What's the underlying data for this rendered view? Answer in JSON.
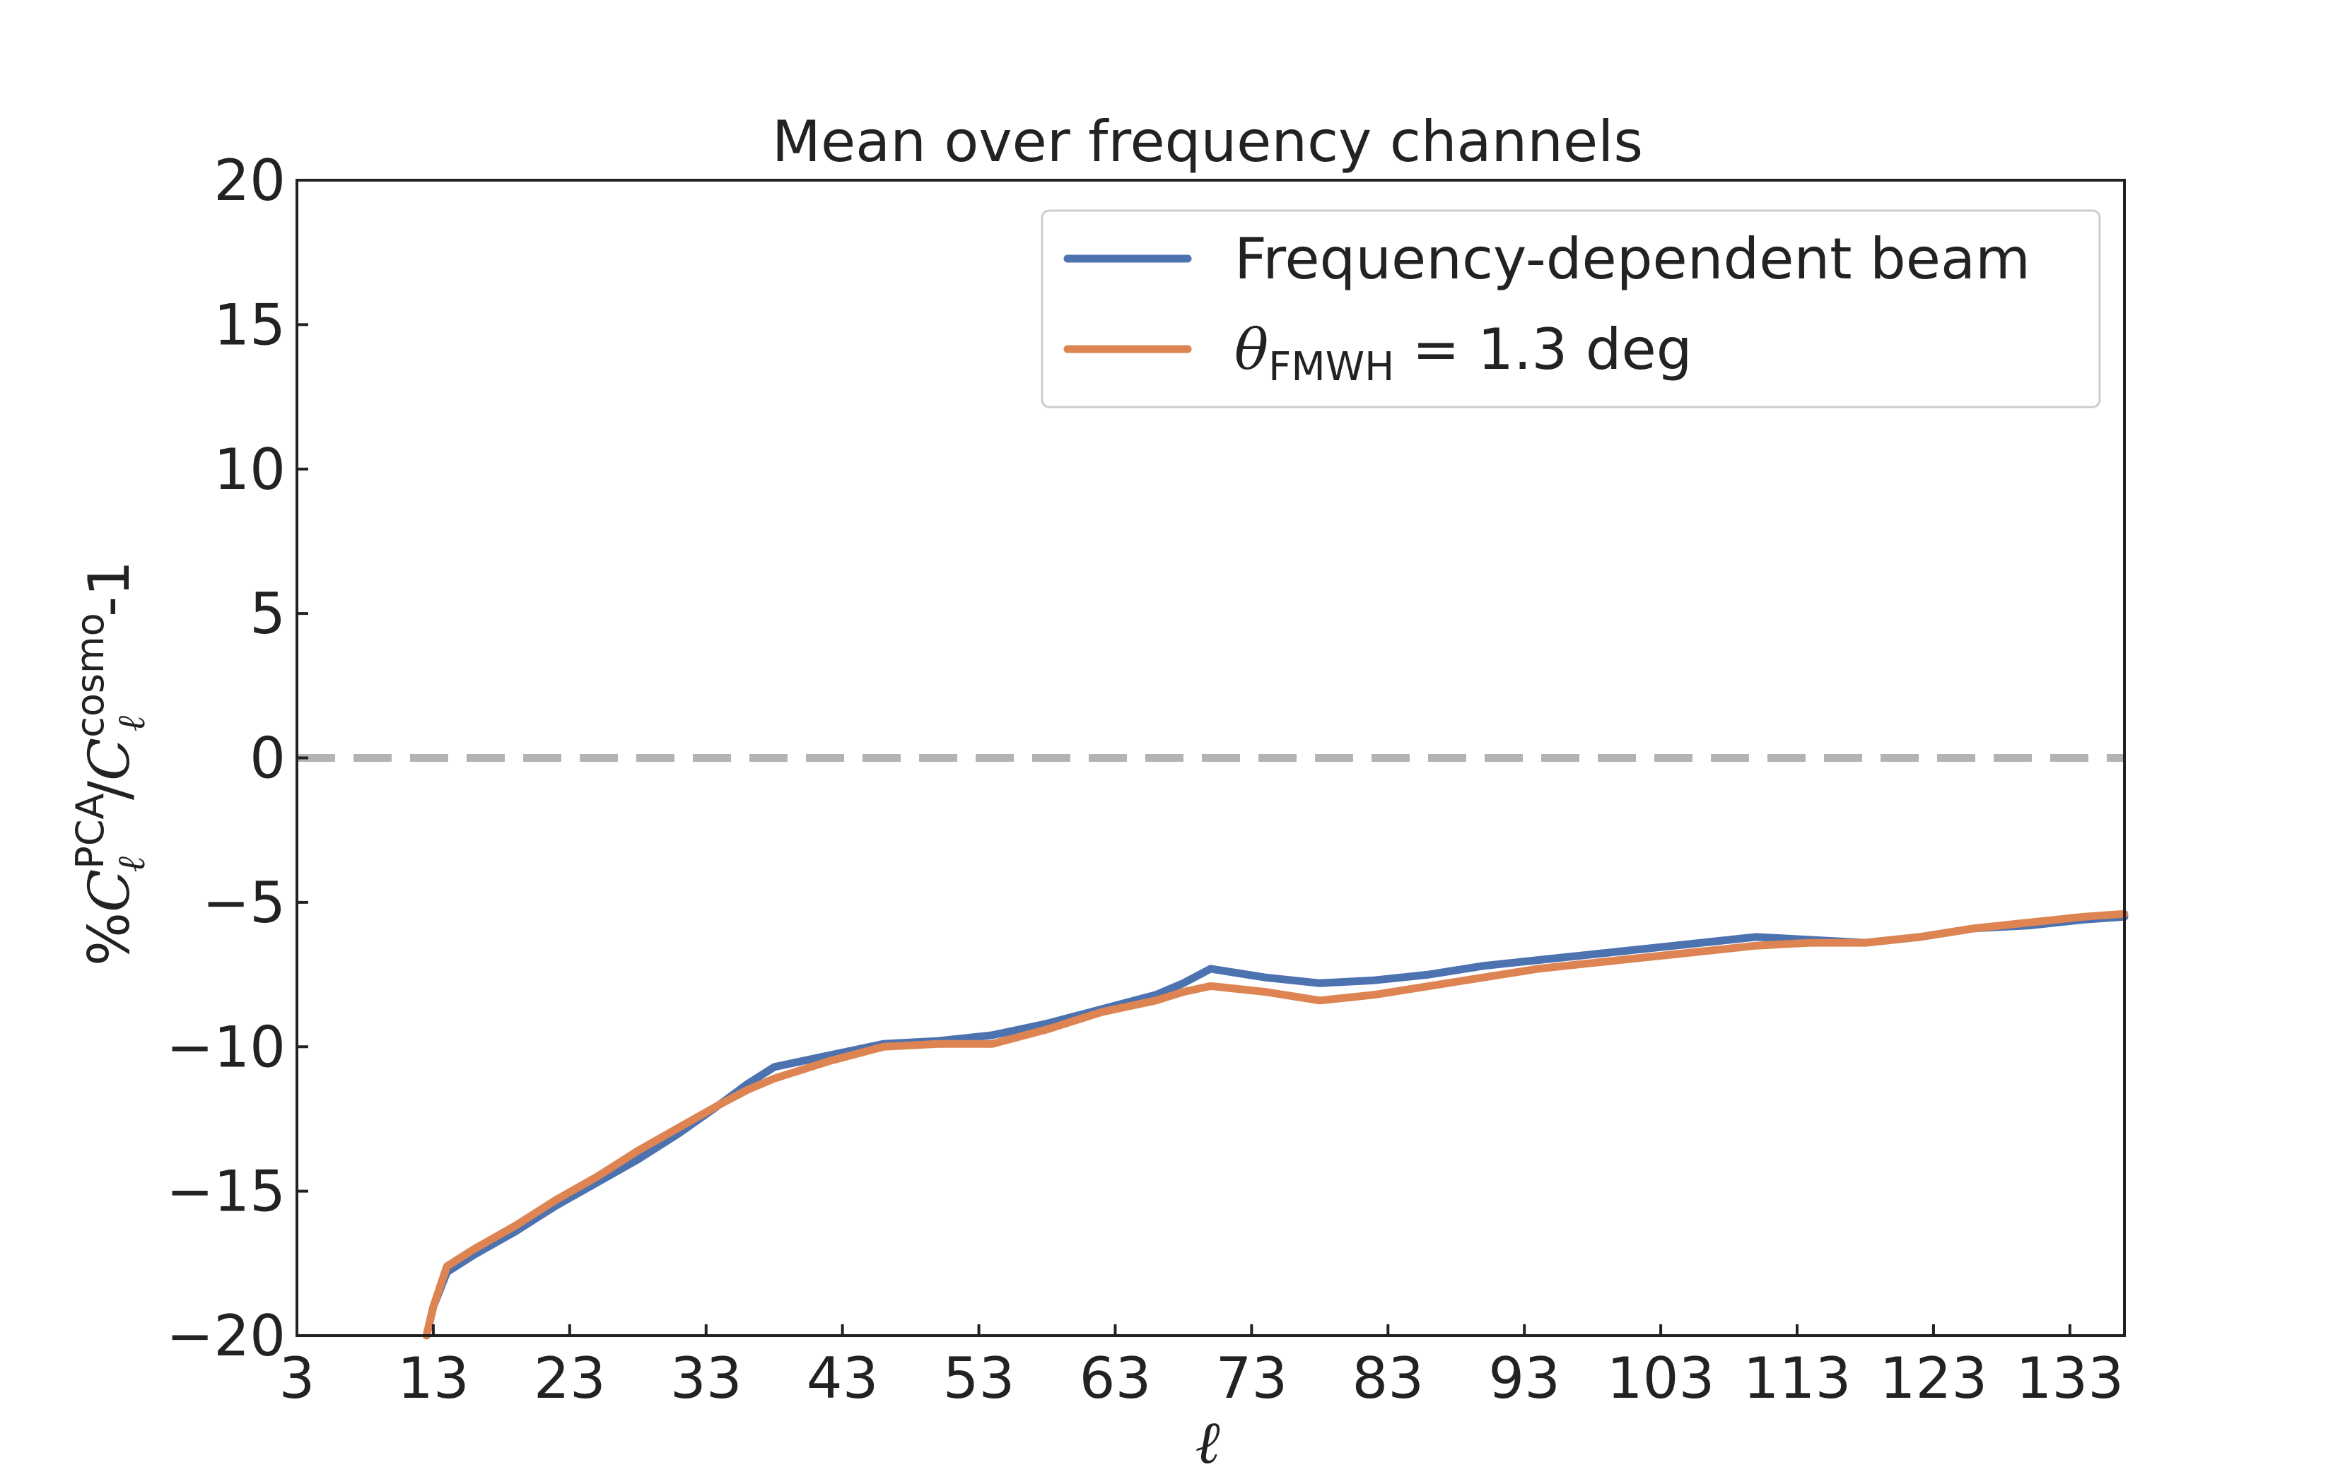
{
  "chart_data": {
    "type": "line",
    "title": "Mean over frequency channels",
    "xlabel": "ℓ",
    "ylabel": {
      "prefix": "%",
      "symbol": "C",
      "sub": "ℓ",
      "sup_num": "PCA",
      "sup_den": "cosmo",
      "suffix": "-1"
    },
    "xlim": [
      3,
      137
    ],
    "ylim": [
      -20,
      20
    ],
    "xticks": [
      3,
      13,
      23,
      33,
      43,
      53,
      63,
      73,
      83,
      93,
      103,
      113,
      123,
      133
    ],
    "yticks": [
      20,
      15,
      10,
      5,
      0,
      -5,
      -10,
      -15,
      -20
    ],
    "ytick_labels": [
      "20",
      "15",
      "10",
      "5",
      "0",
      "−5",
      "−10",
      "−15",
      "−20"
    ],
    "reference_line": {
      "y": 0,
      "style": "dashed",
      "color": "#b3b3b3"
    },
    "legend_position": "top-right",
    "series": [
      {
        "name": "Frequency-dependent beam",
        "color": "#4c72b0",
        "x": [
          12.5,
          13,
          14,
          16,
          19,
          22,
          25,
          28,
          31,
          34,
          36,
          38,
          42,
          46,
          50,
          54,
          58,
          62,
          66,
          68,
          70,
          74,
          78,
          82,
          86,
          90,
          94,
          98,
          102,
          106,
          110,
          114,
          118,
          122,
          126,
          130,
          134,
          137
        ],
        "y": [
          -20,
          -19.0,
          -17.8,
          -17.2,
          -16.4,
          -15.5,
          -14.7,
          -13.9,
          -13.0,
          -12.0,
          -11.3,
          -10.7,
          -10.3,
          -9.9,
          -9.8,
          -9.6,
          -9.2,
          -8.7,
          -8.2,
          -7.8,
          -7.3,
          -7.6,
          -7.8,
          -7.7,
          -7.5,
          -7.2,
          -7.0,
          -6.8,
          -6.6,
          -6.4,
          -6.2,
          -6.3,
          -6.4,
          -6.2,
          -5.9,
          -5.8,
          -5.6,
          -5.5
        ]
      },
      {
        "name": "θ",
        "name_sub": "FMWH",
        "name_rest": " =  1.3 deg",
        "color": "#dd8452",
        "x": [
          12.5,
          13,
          14,
          16,
          19,
          22,
          25,
          28,
          31,
          34,
          36,
          38,
          42,
          46,
          50,
          54,
          58,
          62,
          66,
          68,
          70,
          74,
          78,
          82,
          86,
          90,
          94,
          98,
          102,
          106,
          110,
          114,
          118,
          122,
          126,
          130,
          134,
          137
        ],
        "y": [
          -20,
          -19.0,
          -17.6,
          -17.0,
          -16.2,
          -15.3,
          -14.5,
          -13.6,
          -12.8,
          -12.0,
          -11.5,
          -11.1,
          -10.5,
          -10.0,
          -9.9,
          -9.9,
          -9.4,
          -8.8,
          -8.4,
          -8.1,
          -7.9,
          -8.1,
          -8.4,
          -8.2,
          -7.9,
          -7.6,
          -7.3,
          -7.1,
          -6.9,
          -6.7,
          -6.5,
          -6.4,
          -6.4,
          -6.2,
          -5.9,
          -5.7,
          -5.5,
          -5.4
        ]
      }
    ]
  }
}
